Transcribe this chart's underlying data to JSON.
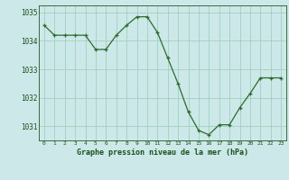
{
  "x": [
    0,
    1,
    2,
    3,
    4,
    5,
    6,
    7,
    8,
    9,
    10,
    11,
    12,
    13,
    14,
    15,
    16,
    17,
    18,
    19,
    20,
    21,
    22,
    23
  ],
  "y": [
    1034.55,
    1034.2,
    1034.2,
    1034.2,
    1034.2,
    1033.7,
    1033.7,
    1034.2,
    1034.55,
    1034.85,
    1034.85,
    1034.3,
    1033.4,
    1032.5,
    1031.5,
    1030.85,
    1030.7,
    1031.05,
    1031.05,
    1031.65,
    1032.15,
    1032.7,
    1032.7,
    1032.7
  ],
  "ylim": [
    1030.5,
    1035.25
  ],
  "yticks": [
    1031,
    1032,
    1033,
    1034,
    1035
  ],
  "xticks": [
    0,
    1,
    2,
    3,
    4,
    5,
    6,
    7,
    8,
    9,
    10,
    11,
    12,
    13,
    14,
    15,
    16,
    17,
    18,
    19,
    20,
    21,
    22,
    23
  ],
  "line_color": "#2d6b2d",
  "marker_color": "#2d6b2d",
  "bg_color": "#cce8e8",
  "grid_color": "#99ccbb",
  "xlabel": "Graphe pression niveau de la mer (hPa)",
  "xlabel_color": "#1a4f1a",
  "tick_color": "#1a4f1a",
  "axis_color": "#3a6a3a",
  "plot_bg": "#cce8e8",
  "fig_bg": "#cce8e8"
}
